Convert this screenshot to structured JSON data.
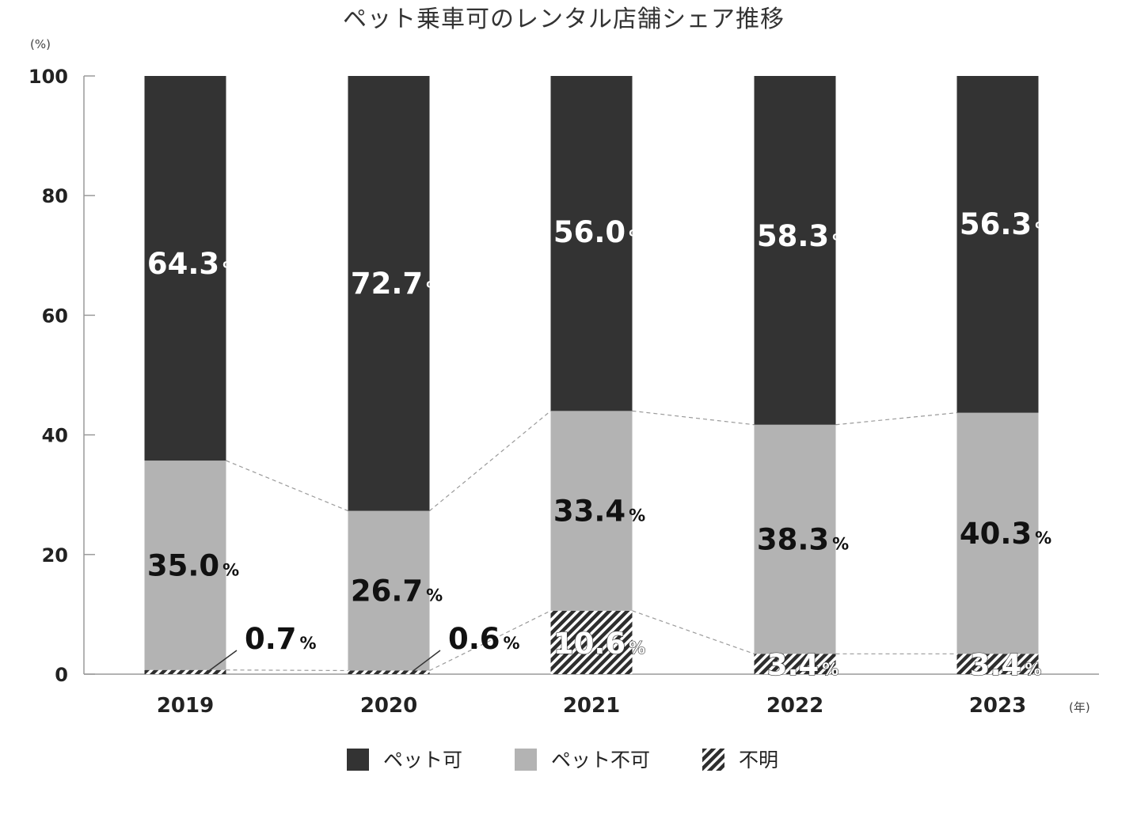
{
  "chart_data": {
    "type": "bar",
    "stacked": true,
    "title": "ペット乗車可のレンタル店舗シェア推移",
    "ylabel": "(%)",
    "xlabel": "(年)",
    "ylim": [
      0,
      100
    ],
    "yticks": [
      0,
      20,
      40,
      60,
      80,
      100
    ],
    "categories": [
      "2019",
      "2020",
      "2021",
      "2022",
      "2023"
    ],
    "series": [
      {
        "name": "不明",
        "values": [
          0.7,
          0.6,
          10.6,
          3.4,
          3.4
        ],
        "labels": [
          "0.7",
          "0.6",
          "10.6",
          "3.4",
          "3.4"
        ],
        "color": "#2e2e2e",
        "pattern": "hatch"
      },
      {
        "name": "ペット不可",
        "values": [
          35.0,
          26.7,
          33.4,
          38.3,
          40.3
        ],
        "labels": [
          "35.0",
          "26.7",
          "33.4",
          "38.3",
          "40.3"
        ],
        "color": "#b3b3b3"
      },
      {
        "name": "ペット可",
        "values": [
          64.3,
          72.7,
          56.0,
          58.3,
          56.3
        ],
        "labels": [
          "64.3",
          "72.7",
          "56.0",
          "58.3",
          "56.3"
        ],
        "color": "#333333"
      }
    ],
    "value_suffix": "%",
    "legend_position": "bottom",
    "connector_lines": true,
    "grid": false
  }
}
